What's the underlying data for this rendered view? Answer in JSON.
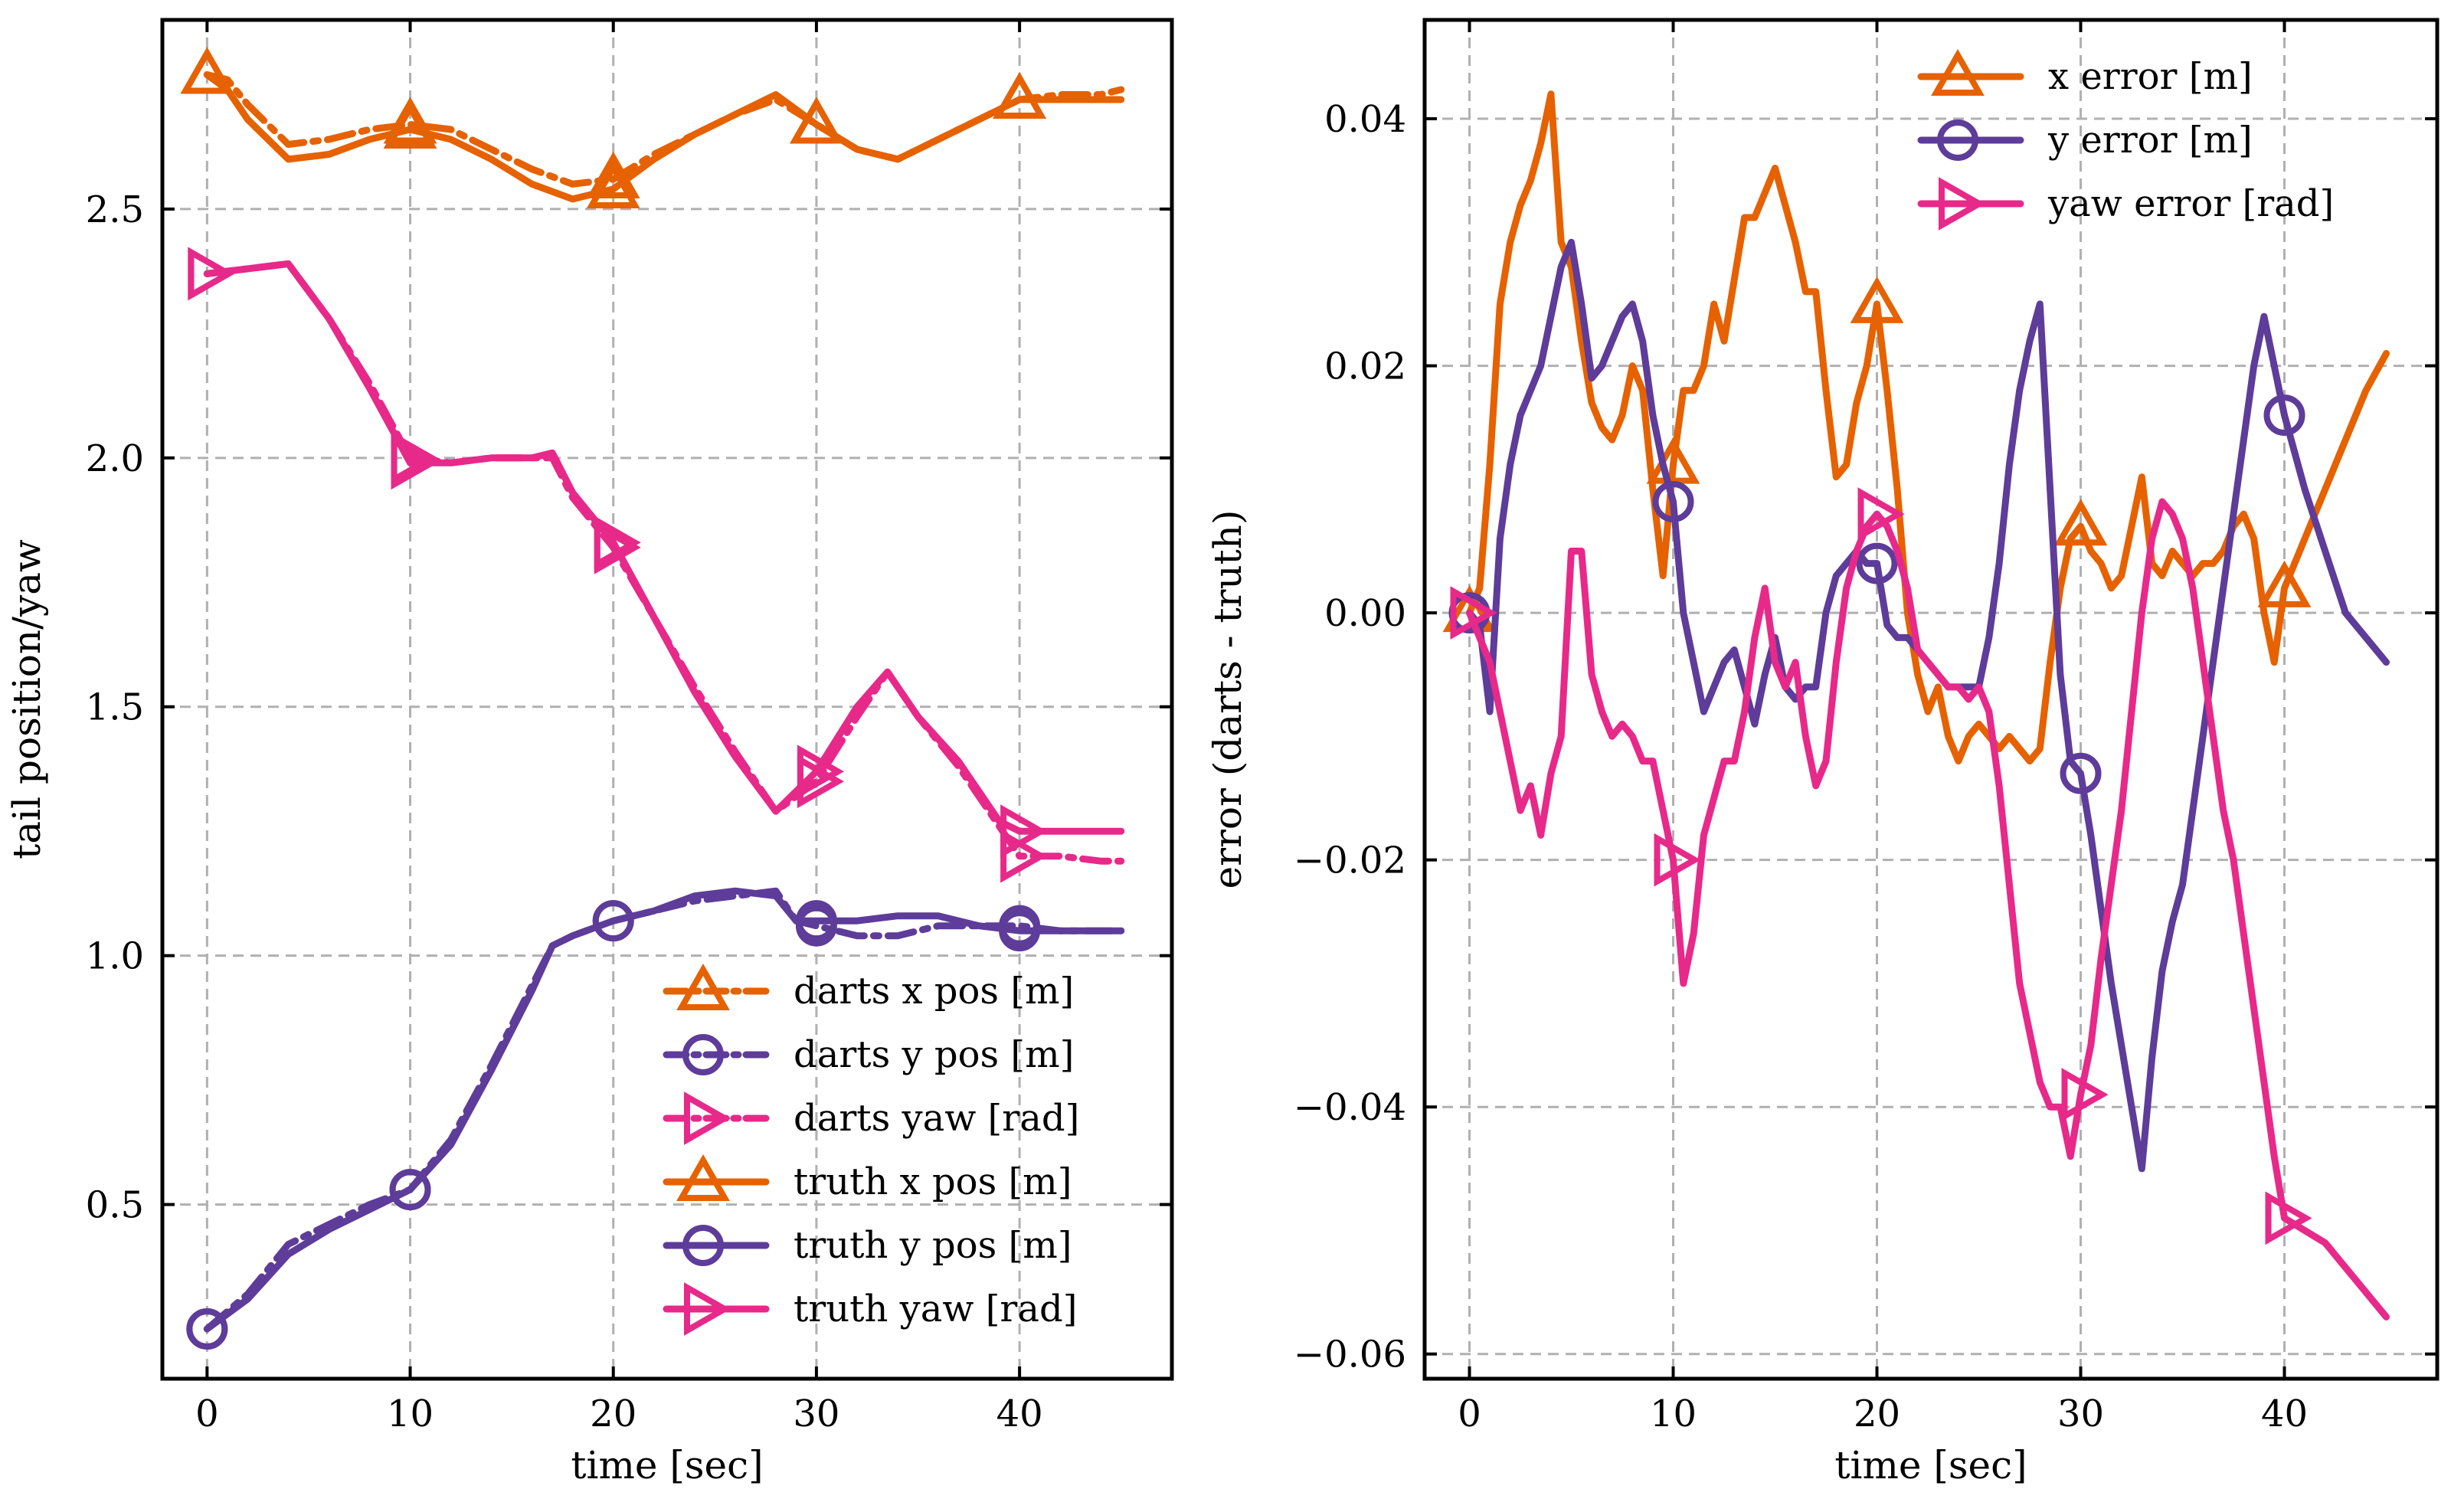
{
  "colors": {
    "x": "#e66100",
    "y": "#5e3c99",
    "yaw": "#e7298a",
    "grid": "#b0b0b0"
  },
  "chart_data": [
    {
      "type": "line",
      "xlabel": "time [sec]",
      "ylabel": "tail position/yaw",
      "xlim": [
        -2.2,
        47.5
      ],
      "ylim": [
        0.15,
        2.88
      ],
      "xticks": [
        0,
        10,
        20,
        30,
        40
      ],
      "xtick_labels": [
        "0",
        "10",
        "20",
        "30",
        "40"
      ],
      "yticks": [
        0.5,
        1.0,
        1.5,
        2.0,
        2.5
      ],
      "ytick_labels": [
        "0.5",
        "1.0",
        "1.5",
        "2.0",
        "2.5"
      ],
      "grid": true,
      "legend_position": "bottom-right",
      "series": [
        {
          "name": "darts x pos [m]",
          "color_key": "x",
          "linestyle": "dashdot",
          "marker": "triangle-up",
          "marker_filled": false,
          "x": [
            0,
            1,
            2,
            4,
            6,
            8,
            10,
            12,
            14,
            16,
            18,
            20,
            22,
            24,
            26,
            28,
            30,
            32,
            34,
            36,
            38,
            40,
            42,
            44,
            45
          ],
          "y": [
            2.77,
            2.76,
            2.71,
            2.63,
            2.64,
            2.66,
            2.67,
            2.66,
            2.62,
            2.58,
            2.55,
            2.56,
            2.61,
            2.65,
            2.69,
            2.72,
            2.67,
            2.62,
            2.6,
            2.64,
            2.68,
            2.72,
            2.73,
            2.73,
            2.74
          ],
          "marker_x": [
            0,
            10,
            20,
            30,
            40
          ]
        },
        {
          "name": "darts y pos [m]",
          "color_key": "y",
          "linestyle": "dashdot",
          "marker": "circle",
          "marker_filled": false,
          "x": [
            0,
            2,
            4,
            6,
            8,
            10,
            12,
            14,
            16,
            17,
            18,
            20,
            22,
            24,
            26,
            28,
            29,
            30,
            32,
            34,
            36,
            38,
            40,
            42,
            44,
            45
          ],
          "y": [
            0.25,
            0.32,
            0.42,
            0.46,
            0.5,
            0.53,
            0.63,
            0.78,
            0.94,
            1.02,
            1.04,
            1.07,
            1.09,
            1.11,
            1.12,
            1.13,
            1.07,
            1.06,
            1.04,
            1.04,
            1.06,
            1.06,
            1.06,
            1.05,
            1.05,
            1.05
          ],
          "marker_x": [
            0,
            10,
            20,
            30,
            40
          ]
        },
        {
          "name": "darts yaw [rad]",
          "color_key": "yaw",
          "linestyle": "dashdot",
          "marker": "triangle-right",
          "marker_filled": false,
          "x": [
            0,
            2,
            4,
            6,
            8,
            10,
            12,
            14,
            16,
            17,
            18,
            20,
            22,
            24,
            26,
            28,
            30,
            32,
            33.5,
            35,
            37,
            39,
            40,
            42,
            44,
            45
          ],
          "y": [
            2.37,
            2.38,
            2.39,
            2.28,
            2.15,
            2.0,
            1.99,
            2.0,
            2.0,
            2.0,
            1.92,
            1.82,
            1.68,
            1.54,
            1.41,
            1.29,
            1.35,
            1.48,
            1.57,
            1.48,
            1.38,
            1.26,
            1.2,
            1.2,
            1.19,
            1.19
          ],
          "marker_x": [
            0,
            10,
            20,
            30,
            40
          ]
        },
        {
          "name": "truth x pos [m]",
          "color_key": "x",
          "linestyle": "solid",
          "marker": "triangle-up",
          "marker_filled": false,
          "x": [
            0,
            1,
            2,
            4,
            6,
            8,
            10,
            12,
            14,
            16,
            18,
            20,
            22,
            24,
            26,
            28,
            30,
            32,
            34,
            36,
            38,
            40,
            42,
            44,
            45
          ],
          "y": [
            2.77,
            2.74,
            2.68,
            2.6,
            2.61,
            2.64,
            2.66,
            2.64,
            2.6,
            2.55,
            2.52,
            2.54,
            2.6,
            2.65,
            2.69,
            2.73,
            2.67,
            2.62,
            2.6,
            2.64,
            2.68,
            2.72,
            2.72,
            2.72,
            2.72
          ],
          "marker_x": [
            0,
            10,
            20,
            30,
            40
          ]
        },
        {
          "name": "truth y pos [m]",
          "color_key": "y",
          "linestyle": "solid",
          "marker": "circle",
          "marker_filled": false,
          "x": [
            0,
            2,
            4,
            6,
            8,
            10,
            12,
            14,
            16,
            17,
            18,
            20,
            22,
            24,
            26,
            28,
            29,
            30,
            32,
            34,
            36,
            38,
            40,
            42,
            44,
            45
          ],
          "y": [
            0.25,
            0.31,
            0.4,
            0.45,
            0.49,
            0.53,
            0.62,
            0.77,
            0.93,
            1.02,
            1.04,
            1.07,
            1.09,
            1.12,
            1.13,
            1.12,
            1.07,
            1.07,
            1.07,
            1.08,
            1.08,
            1.06,
            1.05,
            1.05,
            1.05,
            1.05
          ],
          "marker_x": [
            0,
            10,
            20,
            30,
            40
          ]
        },
        {
          "name": "truth yaw [rad]",
          "color_key": "yaw",
          "linestyle": "solid",
          "marker": "triangle-right",
          "marker_filled": false,
          "x": [
            0,
            2,
            4,
            6,
            8,
            10,
            12,
            14,
            16,
            17,
            18,
            20,
            22,
            24,
            26,
            28,
            30,
            32,
            33.5,
            35,
            37,
            39,
            40,
            42,
            44,
            45
          ],
          "y": [
            2.37,
            2.38,
            2.39,
            2.28,
            2.14,
            1.99,
            1.99,
            2.0,
            2.0,
            2.01,
            1.93,
            1.83,
            1.68,
            1.53,
            1.4,
            1.29,
            1.37,
            1.5,
            1.57,
            1.48,
            1.39,
            1.27,
            1.25,
            1.25,
            1.25,
            1.25
          ],
          "marker_x": [
            0,
            10,
            20,
            30,
            40
          ]
        }
      ]
    },
    {
      "type": "line",
      "xlabel": "time [sec]",
      "ylabel": "error (darts - truth)",
      "xlim": [
        -2.2,
        47.5
      ],
      "ylim": [
        -0.062,
        0.048
      ],
      "xticks": [
        0,
        10,
        20,
        30,
        40
      ],
      "xtick_labels": [
        "0",
        "10",
        "20",
        "30",
        "40"
      ],
      "yticks": [
        -0.06,
        -0.04,
        -0.02,
        0.0,
        0.02,
        0.04
      ],
      "ytick_labels": [
        "−0.06",
        "−0.04",
        "−0.02",
        "0.00",
        "0.02",
        "0.04"
      ],
      "grid": true,
      "legend_position": "top-right",
      "series": [
        {
          "name": "x error [m]",
          "color_key": "x",
          "linestyle": "solid",
          "marker": "triangle-up",
          "marker_filled": false,
          "x": [
            0,
            0.5,
            1,
            1.5,
            2,
            2.5,
            3,
            3.5,
            4,
            4.5,
            5,
            5.5,
            6,
            6.5,
            7,
            7.5,
            8,
            8.5,
            9,
            9.5,
            10,
            10.5,
            11,
            11.5,
            12,
            12.5,
            13,
            13.5,
            14,
            14.5,
            15,
            15.5,
            16,
            16.5,
            17,
            17.5,
            18,
            18.5,
            19,
            19.5,
            20,
            20.5,
            21,
            21.5,
            22,
            22.5,
            23,
            23.5,
            24,
            24.5,
            25,
            25.5,
            26,
            26.5,
            27,
            27.5,
            28,
            28.5,
            29,
            29.5,
            30,
            30.5,
            31,
            31.5,
            32,
            32.5,
            33,
            33.5,
            34,
            34.5,
            35,
            35.5,
            36,
            36.5,
            37,
            37.5,
            38,
            38.5,
            39,
            39.5,
            40,
            41,
            42,
            43,
            44,
            45
          ],
          "y": [
            0.0,
            0.002,
            0.012,
            0.025,
            0.03,
            0.033,
            0.035,
            0.038,
            0.042,
            0.03,
            0.028,
            0.022,
            0.017,
            0.015,
            0.014,
            0.016,
            0.02,
            0.018,
            0.01,
            0.003,
            0.012,
            0.018,
            0.018,
            0.02,
            0.025,
            0.022,
            0.027,
            0.032,
            0.032,
            0.034,
            0.036,
            0.033,
            0.03,
            0.026,
            0.026,
            0.018,
            0.011,
            0.012,
            0.017,
            0.02,
            0.025,
            0.018,
            0.01,
            0.0,
            -0.005,
            -0.008,
            -0.006,
            -0.01,
            -0.012,
            -0.01,
            -0.009,
            -0.01,
            -0.011,
            -0.01,
            -0.011,
            -0.012,
            -0.011,
            -0.004,
            0.002,
            0.006,
            0.007,
            0.005,
            0.004,
            0.002,
            0.003,
            0.007,
            0.011,
            0.004,
            0.003,
            0.005,
            0.004,
            0.003,
            0.004,
            0.004,
            0.005,
            0.007,
            0.008,
            0.006,
            0.0,
            -0.004,
            0.002,
            0.006,
            0.01,
            0.014,
            0.018,
            0.021
          ],
          "marker_x": [
            0,
            10,
            20,
            30,
            40
          ]
        },
        {
          "name": "y error [m]",
          "color_key": "y",
          "linestyle": "solid",
          "marker": "circle",
          "marker_filled": false,
          "x": [
            0,
            0.5,
            1,
            1.5,
            2,
            2.5,
            3,
            3.5,
            4,
            4.5,
            5,
            5.5,
            6,
            6.5,
            7,
            7.5,
            8,
            8.5,
            9,
            9.5,
            10,
            10.5,
            11,
            11.5,
            12,
            12.5,
            13,
            13.5,
            14,
            14.5,
            15,
            15.5,
            16,
            16.5,
            17,
            17.5,
            18,
            18.5,
            19,
            19.5,
            20,
            20.5,
            21,
            21.5,
            22,
            22.5,
            23,
            23.5,
            24,
            24.5,
            25,
            25.5,
            26,
            26.5,
            27,
            27.5,
            28,
            28.5,
            29,
            29.5,
            30,
            30.5,
            31,
            31.5,
            32,
            32.5,
            33,
            33.5,
            34,
            34.5,
            35,
            35.5,
            36,
            36.5,
            37,
            37.5,
            38,
            38.5,
            39,
            39.5,
            40,
            41,
            42,
            43,
            44,
            45
          ],
          "y": [
            0.0,
            -0.001,
            -0.008,
            0.006,
            0.012,
            0.016,
            0.018,
            0.02,
            0.024,
            0.028,
            0.03,
            0.025,
            0.019,
            0.02,
            0.022,
            0.024,
            0.025,
            0.022,
            0.016,
            0.012,
            0.009,
            0.0,
            -0.004,
            -0.008,
            -0.006,
            -0.004,
            -0.003,
            -0.006,
            -0.009,
            -0.005,
            -0.002,
            -0.006,
            -0.007,
            -0.006,
            -0.006,
            0.0,
            0.003,
            0.004,
            0.005,
            0.004,
            0.004,
            -0.001,
            -0.002,
            -0.002,
            -0.003,
            -0.004,
            -0.005,
            -0.006,
            -0.006,
            -0.006,
            -0.006,
            -0.002,
            0.004,
            0.012,
            0.018,
            0.022,
            0.025,
            0.01,
            -0.005,
            -0.012,
            -0.013,
            -0.018,
            -0.024,
            -0.03,
            -0.035,
            -0.04,
            -0.045,
            -0.036,
            -0.029,
            -0.025,
            -0.022,
            -0.016,
            -0.01,
            -0.004,
            0.002,
            0.008,
            0.014,
            0.02,
            0.024,
            0.02,
            0.016,
            0.01,
            0.005,
            0.0,
            -0.002,
            -0.004
          ],
          "marker_x": [
            0,
            10,
            20,
            30,
            40
          ]
        },
        {
          "name": "yaw error [rad]",
          "color_key": "yaw",
          "linestyle": "solid",
          "marker": "triangle-right",
          "marker_filled": false,
          "x": [
            0,
            0.5,
            1,
            1.5,
            2,
            2.5,
            3,
            3.5,
            4,
            4.5,
            5,
            5.5,
            6,
            6.5,
            7,
            7.5,
            8,
            8.5,
            9,
            9.5,
            10,
            10.5,
            11,
            11.5,
            12,
            12.5,
            13,
            13.5,
            14,
            14.5,
            15,
            15.5,
            16,
            16.5,
            17,
            17.5,
            18,
            18.5,
            19,
            19.5,
            20,
            20.5,
            21,
            21.5,
            22,
            22.5,
            23,
            23.5,
            24,
            24.5,
            25,
            25.5,
            26,
            26.5,
            27,
            27.5,
            28,
            28.5,
            29,
            29.5,
            30,
            30.5,
            31,
            31.5,
            32,
            32.5,
            33,
            33.5,
            34,
            34.5,
            35,
            35.5,
            36,
            36.5,
            37,
            37.5,
            38,
            38.5,
            39,
            39.5,
            40,
            41,
            42,
            43,
            44,
            45
          ],
          "y": [
            0.0,
            -0.002,
            -0.004,
            -0.008,
            -0.012,
            -0.016,
            -0.014,
            -0.018,
            -0.013,
            -0.01,
            0.005,
            0.005,
            -0.005,
            -0.008,
            -0.01,
            -0.009,
            -0.01,
            -0.012,
            -0.012,
            -0.016,
            -0.02,
            -0.03,
            -0.026,
            -0.018,
            -0.015,
            -0.012,
            -0.012,
            -0.008,
            -0.002,
            0.002,
            -0.004,
            -0.006,
            -0.004,
            -0.01,
            -0.014,
            -0.012,
            -0.004,
            0.002,
            0.005,
            0.007,
            0.008,
            0.007,
            0.005,
            0.002,
            -0.003,
            -0.004,
            -0.005,
            -0.006,
            -0.006,
            -0.007,
            -0.006,
            -0.008,
            -0.014,
            -0.022,
            -0.03,
            -0.034,
            -0.038,
            -0.04,
            -0.04,
            -0.044,
            -0.039,
            -0.035,
            -0.028,
            -0.022,
            -0.016,
            -0.008,
            0.0,
            0.006,
            0.009,
            0.008,
            0.006,
            0.002,
            -0.004,
            -0.01,
            -0.016,
            -0.02,
            -0.026,
            -0.032,
            -0.038,
            -0.044,
            -0.049,
            -0.05,
            -0.051,
            -0.053,
            -0.055,
            -0.057
          ],
          "marker_x": [
            0,
            10,
            20,
            30,
            40
          ]
        }
      ]
    }
  ]
}
